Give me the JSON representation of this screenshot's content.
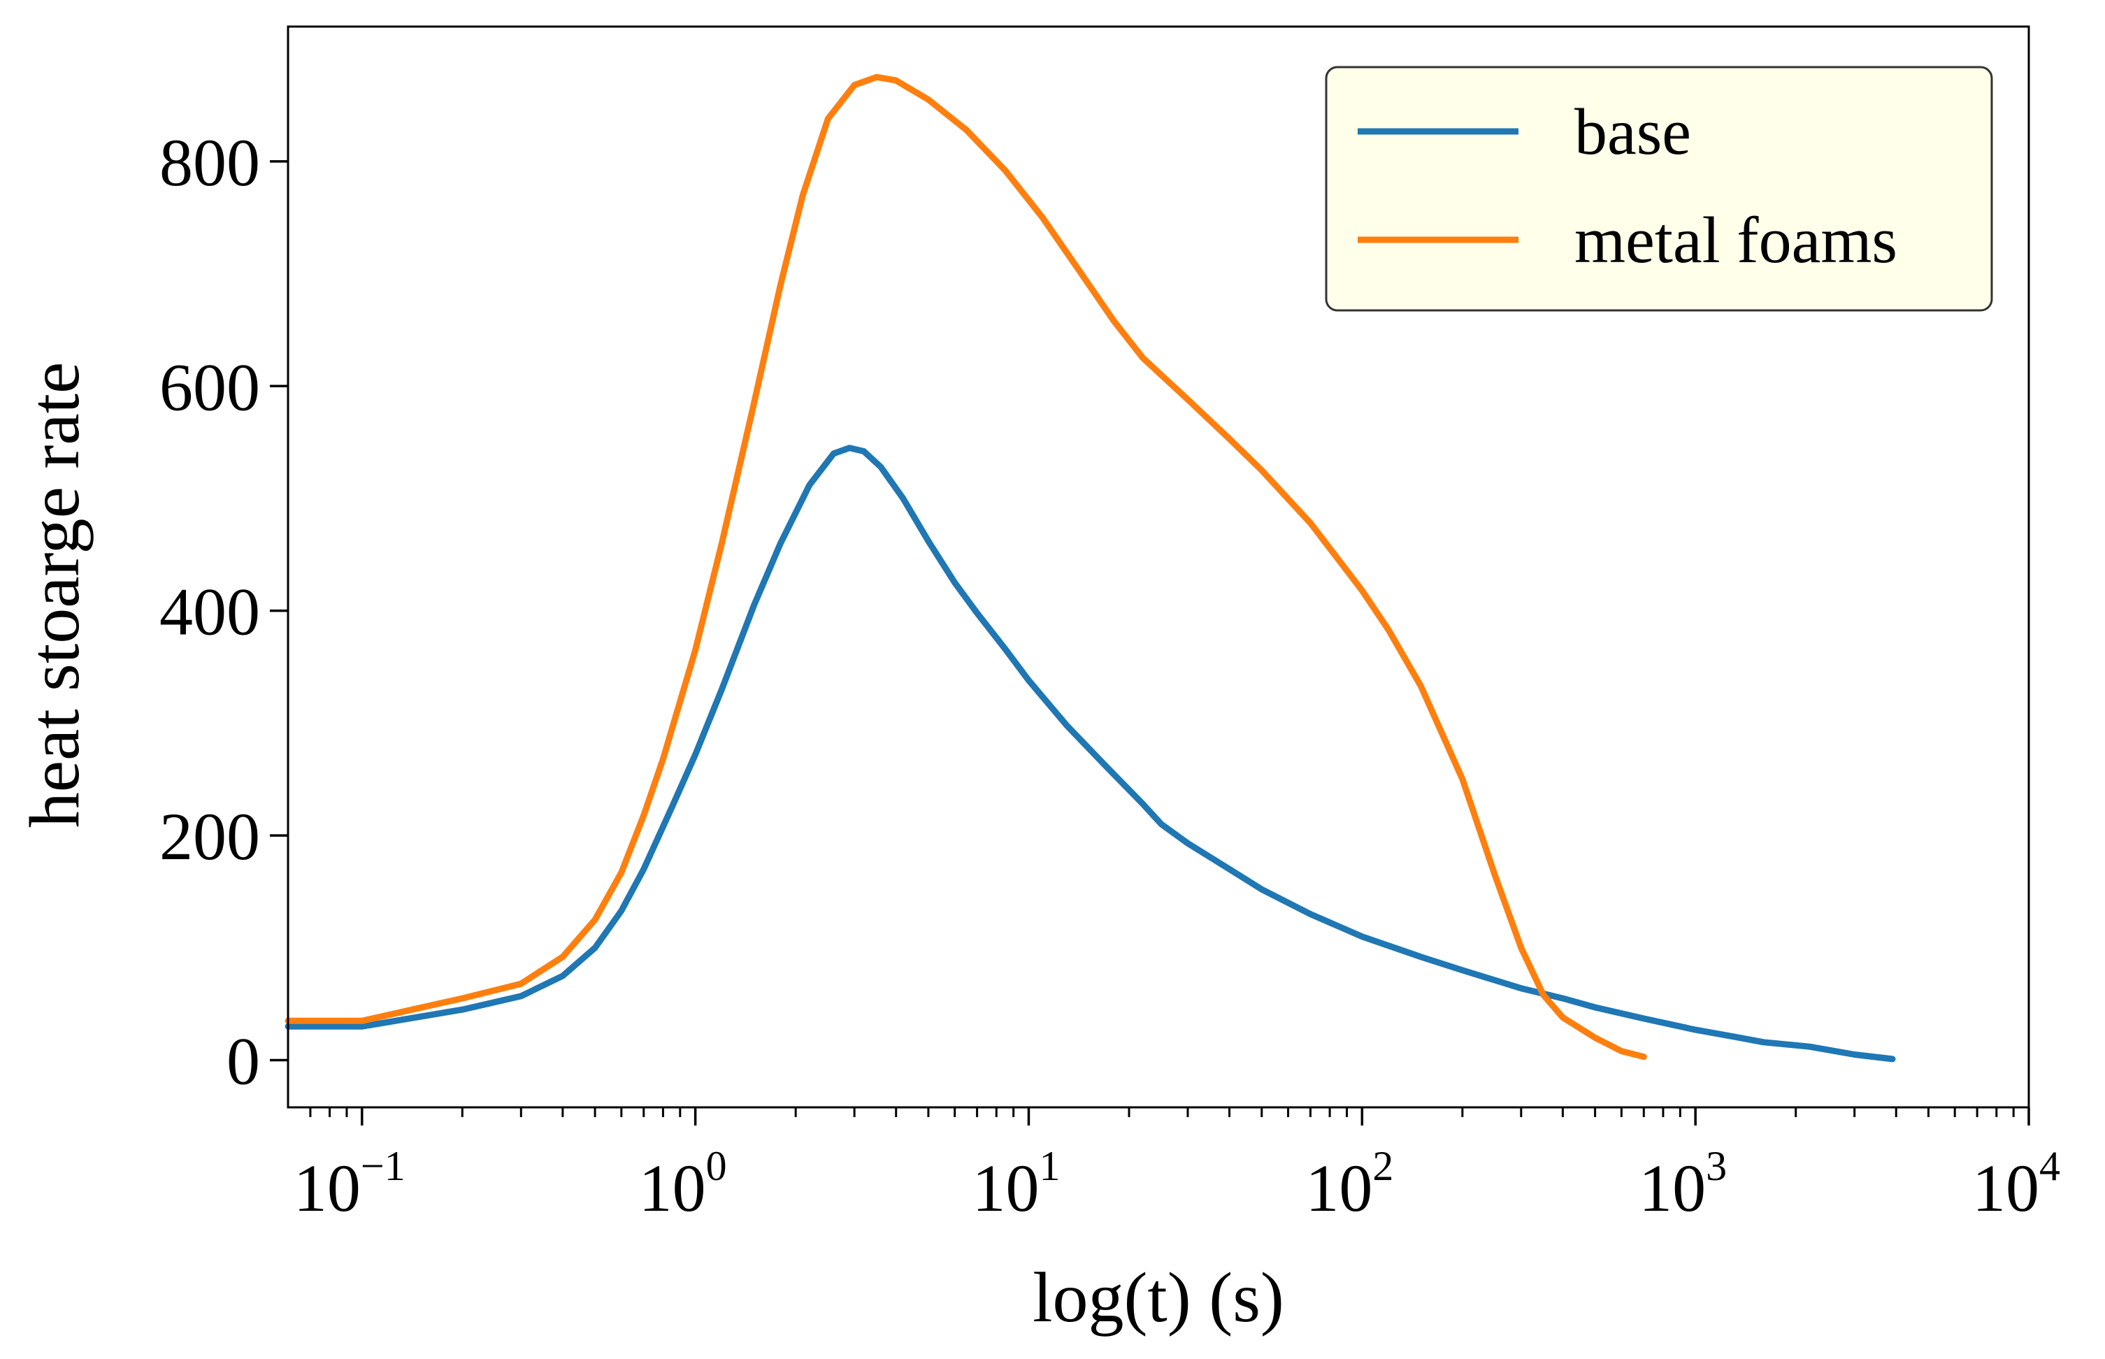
{
  "chart_data": {
    "type": "line",
    "xlabel": "log(t) (s)",
    "ylabel": "heat stoarge rate",
    "xscale": "log",
    "xlim": [
      0.06,
      10000
    ],
    "ylim": [
      -42,
      920
    ],
    "grid": false,
    "legend_position": "top-right",
    "x_ticks": [
      {
        "value": 0.1,
        "base": "10",
        "exp": "−1"
      },
      {
        "value": 1,
        "base": "10",
        "exp": "0"
      },
      {
        "value": 10,
        "base": "10",
        "exp": "1"
      },
      {
        "value": 100,
        "base": "10",
        "exp": "2"
      },
      {
        "value": 1000,
        "base": "10",
        "exp": "3"
      },
      {
        "value": 10000,
        "base": "10",
        "exp": "4"
      }
    ],
    "y_ticks": [
      {
        "value": 0,
        "label": "0"
      },
      {
        "value": 200,
        "label": "200"
      },
      {
        "value": 400,
        "label": "400"
      },
      {
        "value": 600,
        "label": "600"
      },
      {
        "value": 800,
        "label": "800"
      }
    ],
    "series": [
      {
        "name": "base",
        "color": "#1f77b4",
        "points": [
          [
            0.06,
            30
          ],
          [
            0.1,
            30
          ],
          [
            0.2,
            45
          ],
          [
            0.3,
            57
          ],
          [
            0.4,
            75
          ],
          [
            0.5,
            100
          ],
          [
            0.6,
            133
          ],
          [
            0.7,
            170
          ],
          [
            0.85,
            225
          ],
          [
            1.0,
            272
          ],
          [
            1.2,
            330
          ],
          [
            1.5,
            405
          ],
          [
            1.8,
            460
          ],
          [
            2.2,
            512
          ],
          [
            2.6,
            540
          ],
          [
            2.9,
            545
          ],
          [
            3.2,
            542
          ],
          [
            3.6,
            528
          ],
          [
            4.2,
            500
          ],
          [
            5.0,
            462
          ],
          [
            6.0,
            425
          ],
          [
            7.0,
            398
          ],
          [
            8.5,
            366
          ],
          [
            10,
            338
          ],
          [
            13,
            298
          ],
          [
            17,
            262
          ],
          [
            22,
            228
          ],
          [
            25,
            210
          ],
          [
            30,
            193
          ],
          [
            40,
            170
          ],
          [
            50,
            152
          ],
          [
            70,
            130
          ],
          [
            100,
            110
          ],
          [
            150,
            92
          ],
          [
            200,
            80
          ],
          [
            300,
            64
          ],
          [
            400,
            55
          ],
          [
            500,
            47
          ],
          [
            700,
            37
          ],
          [
            1000,
            27
          ],
          [
            1300,
            21
          ],
          [
            1600,
            16
          ],
          [
            2200,
            12
          ],
          [
            3000,
            5
          ],
          [
            3900,
            1
          ]
        ]
      },
      {
        "name": "metal foams",
        "color": "#ff7f0e",
        "points": [
          [
            0.06,
            35
          ],
          [
            0.1,
            35
          ],
          [
            0.2,
            55
          ],
          [
            0.3,
            68
          ],
          [
            0.4,
            92
          ],
          [
            0.5,
            125
          ],
          [
            0.6,
            167
          ],
          [
            0.7,
            218
          ],
          [
            0.8,
            268
          ],
          [
            1.0,
            365
          ],
          [
            1.2,
            460
          ],
          [
            1.5,
            585
          ],
          [
            1.8,
            690
          ],
          [
            2.1,
            770
          ],
          [
            2.5,
            838
          ],
          [
            3.0,
            868
          ],
          [
            3.5,
            875
          ],
          [
            4.0,
            872
          ],
          [
            5.0,
            855
          ],
          [
            6.5,
            828
          ],
          [
            8.5,
            792
          ],
          [
            11,
            750
          ],
          [
            14,
            705
          ],
          [
            18,
            658
          ],
          [
            22,
            625
          ],
          [
            30,
            588
          ],
          [
            40,
            553
          ],
          [
            50,
            525
          ],
          [
            70,
            478
          ],
          [
            100,
            418
          ],
          [
            120,
            383
          ],
          [
            150,
            333
          ],
          [
            200,
            250
          ],
          [
            250,
            165
          ],
          [
            300,
            100
          ],
          [
            350,
            58
          ],
          [
            400,
            38
          ],
          [
            500,
            20
          ],
          [
            600,
            8
          ],
          [
            700,
            3
          ]
        ]
      }
    ]
  }
}
